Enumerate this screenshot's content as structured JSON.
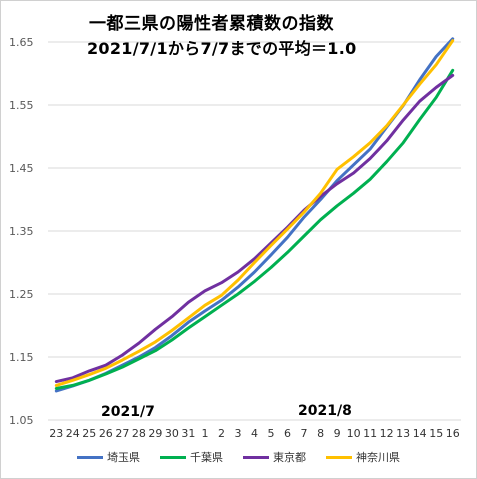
{
  "chart_data": {
    "type": "line",
    "title": "一都三県の陽性者累積数の指数",
    "subtitle": "2021/7/1から7/7までの平均＝1.0",
    "xlabel": "",
    "ylabel": "",
    "categories": [
      "23",
      "24",
      "25",
      "26",
      "27",
      "28",
      "29",
      "30",
      "31",
      "1",
      "2",
      "3",
      "4",
      "5",
      "6",
      "7",
      "8",
      "9",
      "10",
      "11",
      "12",
      "13",
      "14",
      "15",
      "16"
    ],
    "month_labels": [
      {
        "label": "2021/7",
        "category_index": 3
      },
      {
        "label": "2021/8",
        "category_index": 15
      }
    ],
    "ylim": [
      1.05,
      1.65
    ],
    "yticks": [
      1.05,
      1.15,
      1.25,
      1.35,
      1.45,
      1.55,
      1.65
    ],
    "ytick_labels": [
      "1.05",
      "1.15",
      "1.25",
      "1.35",
      "1.45",
      "1.55",
      "1.65"
    ],
    "grid": true,
    "legend_position": "bottom",
    "series": [
      {
        "name": "埼玉県",
        "color": "#4472C4",
        "values": [
          1.096,
          1.104,
          1.113,
          1.124,
          1.137,
          1.15,
          1.165,
          1.184,
          1.205,
          1.223,
          1.24,
          1.261,
          1.285,
          1.312,
          1.34,
          1.372,
          1.4,
          1.43,
          1.455,
          1.48,
          1.515,
          1.549,
          1.59,
          1.627,
          1.655
        ]
      },
      {
        "name": "千葉県",
        "color": "#00B050",
        "values": [
          1.1,
          1.105,
          1.113,
          1.123,
          1.134,
          1.147,
          1.16,
          1.177,
          1.196,
          1.214,
          1.232,
          1.25,
          1.27,
          1.292,
          1.316,
          1.342,
          1.368,
          1.39,
          1.41,
          1.432,
          1.46,
          1.49,
          1.527,
          1.562,
          1.605
        ]
      },
      {
        "name": "東京都",
        "color": "#7030A0",
        "values": [
          1.111,
          1.117,
          1.128,
          1.137,
          1.153,
          1.172,
          1.194,
          1.214,
          1.237,
          1.255,
          1.268,
          1.285,
          1.306,
          1.331,
          1.356,
          1.383,
          1.405,
          1.425,
          1.442,
          1.465,
          1.493,
          1.526,
          1.556,
          1.578,
          1.597
        ]
      },
      {
        "name": "神奈川県",
        "color": "#FFC000",
        "values": [
          1.105,
          1.113,
          1.122,
          1.132,
          1.145,
          1.159,
          1.174,
          1.192,
          1.212,
          1.232,
          1.248,
          1.272,
          1.3,
          1.327,
          1.353,
          1.38,
          1.41,
          1.448,
          1.468,
          1.49,
          1.517,
          1.55,
          1.583,
          1.614,
          1.652
        ]
      }
    ]
  }
}
